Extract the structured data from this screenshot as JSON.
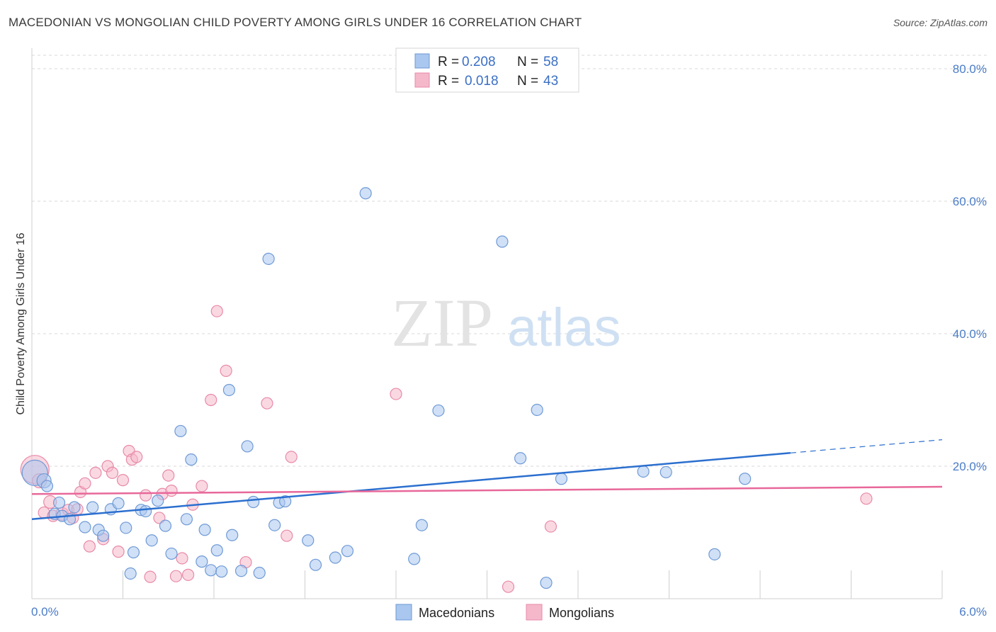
{
  "title": "MACEDONIAN VS MONGOLIAN CHILD POVERTY AMONG GIRLS UNDER 16 CORRELATION CHART",
  "source": "Source: ZipAtlas.com",
  "colors": {
    "macedonian_fill": "#a9c7ef",
    "macedonian_stroke": "#6f9ad6",
    "macedonian_line": "#2b6fcf",
    "mongolian_fill": "#f5b8cb",
    "mongolian_stroke": "#e88aa8",
    "mongolian_line": "#e8689a",
    "grid": "#d8d8d8",
    "tick_text": "#4a7cc7"
  },
  "legend": {
    "r_label": "R =",
    "n_label": "N =",
    "rows": [
      {
        "r": "0.208",
        "n": "58"
      },
      {
        "r": "0.018",
        "n": "43"
      }
    ]
  },
  "bottom_legend": [
    "Macedonians",
    "Mongolians"
  ],
  "watermark": {
    "zip": "ZIP",
    "atlas": "atlas"
  },
  "chart_data": {
    "type": "scatter",
    "title": "MACEDONIAN VS MONGOLIAN CHILD POVERTY AMONG GIRLS UNDER 16 CORRELATION CHART",
    "xlabel": "",
    "ylabel": "Child Poverty Among Girls Under 16",
    "xlim": [
      0,
      6
    ],
    "ylim": [
      0,
      80
    ],
    "x_tick_labels": [
      "0.0%",
      "6.0%"
    ],
    "y_tick_labels": [
      "20.0%",
      "40.0%",
      "60.0%",
      "80.0%"
    ],
    "y_ticks": [
      20,
      40,
      60,
      80
    ],
    "grid": true,
    "legend_position": "top-center",
    "series": [
      {
        "name": "Macedonians",
        "r": 0.208,
        "n": 58,
        "trend": {
          "x0": 0,
          "y0": 12.0,
          "x1": 5.0,
          "y1": 22.0,
          "dash_to_x": 6.0,
          "dash_to_y": 24.0
        },
        "points": [
          [
            0.02,
            19.0,
            18
          ],
          [
            0.08,
            17.8,
            10
          ],
          [
            0.1,
            17.0,
            8
          ],
          [
            0.15,
            12.8,
            8
          ],
          [
            0.18,
            14.5,
            8
          ],
          [
            0.2,
            12.5,
            8
          ],
          [
            0.25,
            12.0,
            8
          ],
          [
            0.28,
            13.8,
            8
          ],
          [
            0.35,
            10.8,
            8
          ],
          [
            0.4,
            13.8,
            8
          ],
          [
            0.44,
            10.4,
            8
          ],
          [
            0.47,
            9.5,
            8
          ],
          [
            0.52,
            13.5,
            8
          ],
          [
            0.57,
            14.4,
            8
          ],
          [
            0.62,
            10.7,
            8
          ],
          [
            0.65,
            3.8,
            8
          ],
          [
            0.67,
            7.0,
            8
          ],
          [
            0.72,
            13.4,
            8
          ],
          [
            0.75,
            13.2,
            8
          ],
          [
            0.79,
            8.8,
            8
          ],
          [
            0.83,
            14.8,
            8
          ],
          [
            0.88,
            11.0,
            8
          ],
          [
            0.92,
            6.8,
            8
          ],
          [
            0.98,
            25.3,
            8
          ],
          [
            1.02,
            12.0,
            8
          ],
          [
            1.05,
            21.0,
            8
          ],
          [
            1.12,
            5.6,
            8
          ],
          [
            1.14,
            10.4,
            8
          ],
          [
            1.18,
            4.3,
            8
          ],
          [
            1.22,
            7.3,
            8
          ],
          [
            1.25,
            4.1,
            8
          ],
          [
            1.3,
            31.5,
            8
          ],
          [
            1.32,
            9.6,
            8
          ],
          [
            1.38,
            4.2,
            8
          ],
          [
            1.42,
            23.0,
            8
          ],
          [
            1.46,
            14.6,
            8
          ],
          [
            1.5,
            3.9,
            8
          ],
          [
            1.56,
            51.3,
            8
          ],
          [
            1.6,
            11.1,
            8
          ],
          [
            1.63,
            14.5,
            8
          ],
          [
            1.67,
            14.7,
            8
          ],
          [
            1.82,
            8.8,
            8
          ],
          [
            1.87,
            5.1,
            8
          ],
          [
            2.0,
            6.2,
            8
          ],
          [
            2.08,
            7.2,
            8
          ],
          [
            2.2,
            61.2,
            8
          ],
          [
            2.52,
            6.0,
            8
          ],
          [
            2.57,
            11.1,
            8
          ],
          [
            2.68,
            28.4,
            8
          ],
          [
            3.1,
            53.9,
            8
          ],
          [
            3.22,
            21.2,
            8
          ],
          [
            3.33,
            28.5,
            8
          ],
          [
            3.39,
            2.4,
            8
          ],
          [
            3.49,
            18.1,
            8
          ],
          [
            4.03,
            19.2,
            8
          ],
          [
            4.18,
            19.1,
            8
          ],
          [
            4.5,
            6.7,
            8
          ],
          [
            4.7,
            18.1,
            8
          ]
        ]
      },
      {
        "name": "Mongolians",
        "r": 0.018,
        "n": 43,
        "trend": {
          "x0": 0,
          "y0": 15.8,
          "x1": 6.0,
          "y1": 16.9
        },
        "points": [
          [
            0.02,
            19.5,
            20
          ],
          [
            0.05,
            17.8,
            10
          ],
          [
            0.08,
            13.0,
            8
          ],
          [
            0.12,
            14.6,
            9
          ],
          [
            0.14,
            12.5,
            8
          ],
          [
            0.2,
            12.8,
            9
          ],
          [
            0.24,
            13.4,
            8
          ],
          [
            0.27,
            12.2,
            8
          ],
          [
            0.3,
            13.5,
            8
          ],
          [
            0.32,
            16.1,
            8
          ],
          [
            0.35,
            17.4,
            8
          ],
          [
            0.38,
            7.9,
            8
          ],
          [
            0.42,
            19.0,
            8
          ],
          [
            0.47,
            9.0,
            8
          ],
          [
            0.5,
            20.0,
            8
          ],
          [
            0.53,
            19.0,
            8
          ],
          [
            0.57,
            7.1,
            8
          ],
          [
            0.6,
            17.9,
            8
          ],
          [
            0.64,
            22.3,
            8
          ],
          [
            0.66,
            21.0,
            8
          ],
          [
            0.69,
            21.4,
            8
          ],
          [
            0.75,
            15.6,
            8
          ],
          [
            0.78,
            3.3,
            8
          ],
          [
            0.84,
            12.2,
            8
          ],
          [
            0.86,
            15.8,
            8
          ],
          [
            0.9,
            18.6,
            8
          ],
          [
            0.92,
            16.3,
            8
          ],
          [
            0.95,
            3.4,
            8
          ],
          [
            0.99,
            6.1,
            8
          ],
          [
            1.03,
            3.6,
            8
          ],
          [
            1.06,
            14.2,
            8
          ],
          [
            1.12,
            17.0,
            8
          ],
          [
            1.18,
            30.0,
            8
          ],
          [
            1.22,
            43.4,
            8
          ],
          [
            1.28,
            34.4,
            8
          ],
          [
            1.41,
            5.5,
            8
          ],
          [
            1.55,
            29.5,
            8
          ],
          [
            1.68,
            9.5,
            8
          ],
          [
            1.71,
            21.4,
            8
          ],
          [
            2.4,
            30.9,
            8
          ],
          [
            3.14,
            1.8,
            8
          ],
          [
            3.42,
            10.9,
            8
          ],
          [
            5.5,
            15.1,
            8
          ]
        ]
      }
    ]
  }
}
